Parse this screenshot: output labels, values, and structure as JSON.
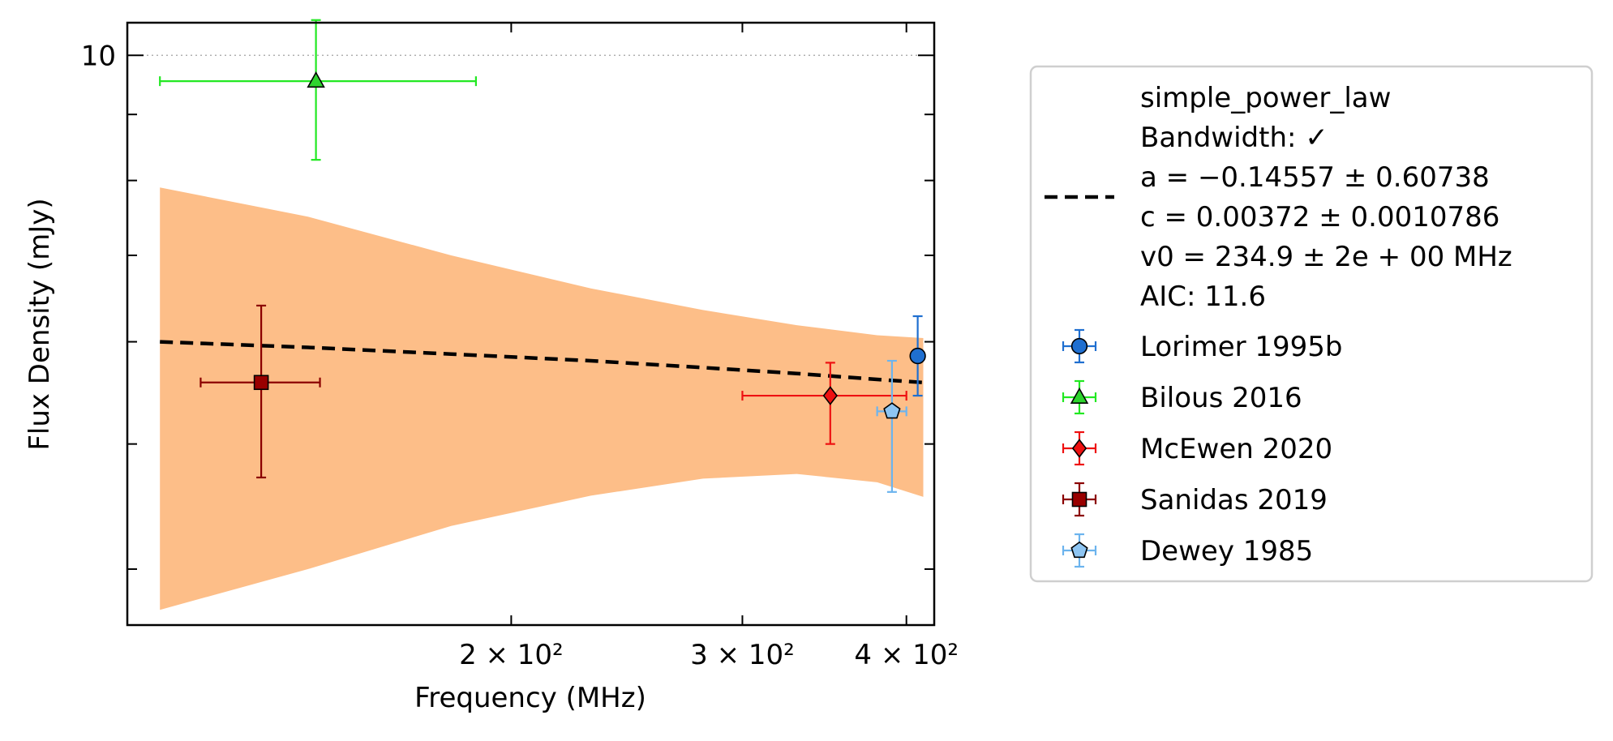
{
  "chart_data": {
    "type": "scatter",
    "xlabel": "Frequency (MHz)",
    "ylabel": "Flux Density (mJy)",
    "x_scale": "log",
    "y_scale": "log",
    "xlim": [
      102,
      420
    ],
    "ylim": [
      3.62,
      10.6
    ],
    "x_ticks": [
      {
        "value": 200,
        "label": "2 × 10²"
      },
      {
        "value": 300,
        "label": "3 × 10²"
      },
      {
        "value": 400,
        "label": "4 × 10²"
      }
    ],
    "x_minor_ticks": [
      200,
      300,
      400
    ],
    "y_ticks": [
      {
        "value": 10,
        "label": "10"
      }
    ],
    "y_minor_ticks": [
      4,
      5,
      6,
      7,
      8,
      9
    ],
    "hline": {
      "y": 10,
      "style": "dotted",
      "color": "#b0b0b0"
    },
    "legend_position": "outside-right",
    "fit": {
      "name": "simple_power_law",
      "legend_lines": [
        "simple_power_law",
        "Bandwidth: ✓",
        "a = −0.14557 ± 0.60738",
        "c = 0.00372 ± 0.0010786",
        "v0 = 234.9 ± 2e + 00 MHz",
        "AIC: 11.6"
      ],
      "line_color": "#000000",
      "band_color": "#fdbe88",
      "x": [
        108,
        140,
        180,
        230,
        280,
        330,
        380,
        412
      ],
      "y": [
        6.0,
        5.94,
        5.87,
        5.8,
        5.73,
        5.67,
        5.61,
        5.58
      ],
      "upper": [
        7.9,
        7.5,
        7.0,
        6.6,
        6.35,
        6.18,
        6.07,
        6.04
      ],
      "lower": [
        3.72,
        4.0,
        4.32,
        4.56,
        4.7,
        4.74,
        4.67,
        4.55
      ]
    },
    "series": [
      {
        "name": "Lorimer 1995b",
        "marker": "circle",
        "color": "#1f6fd0",
        "fill": "#1f6fd0",
        "points": [
          {
            "x": 408,
            "y": 5.85,
            "xerr": [
              0,
              0
            ],
            "yerr": [
              0.4,
              0.43
            ]
          }
        ]
      },
      {
        "name": "Bilous 2016",
        "marker": "triangle",
        "color": "#22e822",
        "fill": "#2ed42e",
        "points": [
          {
            "x": 142,
            "y": 9.55,
            "xerr": [
              34,
              46
            ],
            "yerr": [
              1.25,
              1.1
            ]
          }
        ]
      },
      {
        "name": "McEwen 2020",
        "marker": "diamond",
        "color": "#ee1111",
        "fill": "#ee1111",
        "points": [
          {
            "x": 350,
            "y": 5.45,
            "xerr": [
              50,
              50
            ],
            "yerr": [
              0.45,
              0.33
            ]
          }
        ]
      },
      {
        "name": "Sanidas 2019",
        "marker": "square",
        "color": "#8b0000",
        "fill": "#990000",
        "points": [
          {
            "x": 129,
            "y": 5.58,
            "xerr": [
              13,
              14
            ],
            "yerr": [
              0.87,
              0.82
            ]
          }
        ]
      },
      {
        "name": "Dewey 1985",
        "marker": "pentagon",
        "color": "#6cb4ee",
        "fill": "#8ec5f2",
        "points": [
          {
            "x": 390,
            "y": 5.3,
            "xerr": [
              10,
              10
            ],
            "yerr": [
              0.71,
              0.5
            ]
          }
        ]
      }
    ]
  }
}
